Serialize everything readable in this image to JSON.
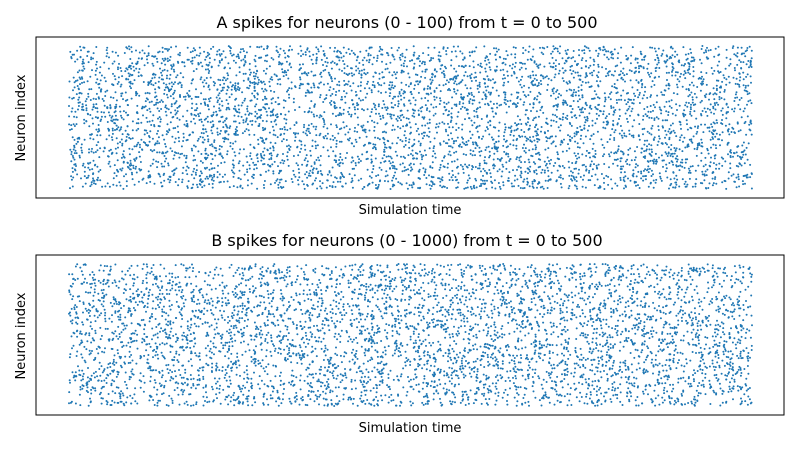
{
  "chart_data": [
    {
      "type": "scatter",
      "title": "A spikes for neurons (0 - 100) from t = 0 to 500",
      "xlabel": "Simulation time",
      "ylabel": "Neuron index",
      "xlim": [
        0,
        500
      ],
      "ylim": [
        0,
        100
      ],
      "ticks_visible": false,
      "grid": false,
      "marker_color": "#1f77b4",
      "neuron_count": 100,
      "spike_count_approx": 5000,
      "neuron_index_range": [
        0,
        100
      ],
      "time_range": [
        0,
        500
      ],
      "series": [
        {
          "name": "",
          "points": "dense raster of spikes"
        }
      ]
    },
    {
      "type": "scatter",
      "title": "B spikes for neurons (0 - 1000) from t = 0 to 500",
      "xlabel": "Simulation time",
      "ylabel": "Neuron index",
      "xlim": [
        0,
        500
      ],
      "ylim": [
        0,
        1000
      ],
      "ticks_visible": false,
      "grid": false,
      "marker_color": "#1f77b4",
      "neuron_count": 1000,
      "spike_count_approx": 5000,
      "neuron_index_range": [
        0,
        1000
      ],
      "time_range": [
        0,
        500
      ],
      "series": [
        {
          "name": "",
          "points": "dense raster of spikes"
        }
      ]
    }
  ]
}
